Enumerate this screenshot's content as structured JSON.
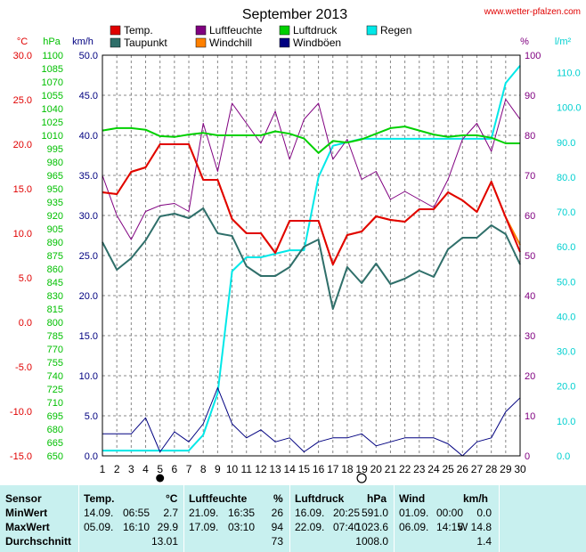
{
  "page": {
    "title": "September 2013",
    "site": "www.wetter-pfalzen.com"
  },
  "colors": {
    "temp": "#e00000",
    "taupunkt": "#2f6f6a",
    "luftfeuchte": "#800080",
    "windchill": "#ff8000",
    "luftdruck": "#00d000",
    "windboeen": "#000080",
    "regen": "#00e8e8",
    "grid": "#888888",
    "stats_bg": "#c8f0ef"
  },
  "legend": [
    {
      "label": "Temp.",
      "color": "#e00000"
    },
    {
      "label": "Taupunkt",
      "color": "#2f6f6a"
    },
    {
      "label": "Luftfeuchte",
      "color": "#800080"
    },
    {
      "label": "Windchill",
      "color": "#ff8000"
    },
    {
      "label": "Luftdruck",
      "color": "#00d000"
    },
    {
      "label": "Windböen",
      "color": "#000080"
    },
    {
      "label": "Regen",
      "color": "#00e8e8"
    }
  ],
  "axes": {
    "unit_celsius": "°C",
    "unit_hpa": "hPa",
    "unit_kmh": "km/h",
    "unit_percent": "%",
    "unit_lm2": "l/m²",
    "celsius_ticks": [
      "30.0",
      "25.0",
      "20.0",
      "15.0",
      "10.0",
      "5.0",
      "0.0",
      "-5.0",
      "-10.0",
      "-15.0"
    ],
    "hpa_ticks": [
      "1100",
      "1085",
      "1070",
      "1055",
      "1040",
      "1025",
      "1010",
      "995",
      "980",
      "965",
      "950",
      "935",
      "920",
      "905",
      "890",
      "875",
      "860",
      "845",
      "830",
      "815",
      "800",
      "785",
      "770",
      "755",
      "740",
      "725",
      "710",
      "695",
      "680",
      "665",
      "650"
    ],
    "kmh_ticks": [
      "50.0",
      "45.0",
      "40.0",
      "35.0",
      "30.0",
      "25.0",
      "20.0",
      "15.0",
      "10.0",
      "5.0",
      "0.0"
    ],
    "percent_ticks": [
      "100",
      "90",
      "80",
      "70",
      "60",
      "50",
      "40",
      "30",
      "20",
      "10",
      "0"
    ],
    "lm2_ticks": [
      "110.0",
      "100.0",
      "90.0",
      "80.0",
      "70.0",
      "60.0",
      "50.0",
      "40.0",
      "30.0",
      "20.0",
      "10.0",
      "0.0"
    ],
    "day_ticks": [
      "1",
      "2",
      "3",
      "4",
      "5",
      "6",
      "7",
      "8",
      "9",
      "10",
      "11",
      "12",
      "13",
      "14",
      "15",
      "16",
      "17",
      "18",
      "19",
      "20",
      "21",
      "22",
      "23",
      "24",
      "25",
      "26",
      "27",
      "28",
      "29",
      "30"
    ]
  },
  "moon_phases": [
    {
      "day": 5,
      "phase": "new-moon"
    },
    {
      "day": 19,
      "phase": "full-moon"
    }
  ],
  "chart_data": {
    "type": "line",
    "title": "September 2013",
    "x": [
      1,
      2,
      3,
      4,
      5,
      6,
      7,
      8,
      9,
      10,
      11,
      12,
      13,
      14,
      15,
      16,
      17,
      18,
      19,
      20,
      21,
      22,
      23,
      24,
      25,
      26,
      27,
      28,
      29,
      30
    ],
    "ylim_celsius": [
      -15,
      30
    ],
    "ylim_kmh": [
      0,
      50
    ],
    "ylim_percent": [
      0,
      100
    ],
    "ylim_lm2": [
      0,
      115
    ],
    "series": [
      {
        "name": "Temp.",
        "axis": "celsius",
        "values": [
          14.6,
          14.4,
          16.9,
          17.4,
          20,
          20,
          20,
          16,
          16,
          11.6,
          10,
          10,
          7.8,
          11.4,
          11.4,
          11.4,
          6.5,
          9.8,
          10.2,
          11.9,
          11.5,
          11.3,
          12.7,
          12.7,
          14.6,
          13.7,
          12.4,
          15.8,
          11.8,
          7.9
        ]
      },
      {
        "name": "Taupunkt",
        "axis": "celsius",
        "values": [
          9,
          5.9,
          7.2,
          9.2,
          11.9,
          12.2,
          11.7,
          12.8,
          10,
          9.7,
          6.3,
          5.2,
          5.2,
          6.2,
          8.5,
          9.3,
          1.5,
          6.2,
          4.4,
          6.6,
          4.3,
          4.9,
          5.8,
          5.1,
          8.2,
          9.5,
          9.5,
          10.9,
          9.9,
          6.5
        ]
      },
      {
        "name": "Luftfeuchte",
        "axis": "percent",
        "values": [
          70,
          60,
          54,
          61,
          62.5,
          63,
          61,
          83,
          71,
          88,
          83,
          78,
          86,
          74,
          84,
          88,
          74,
          79,
          69,
          71,
          64,
          66,
          64,
          62,
          69,
          79,
          83,
          76,
          89,
          84
        ]
      },
      {
        "name": "Luftdruck",
        "axis": "kmh",
        "values": [
          40.6,
          40.9,
          40.9,
          40.7,
          39.9,
          39.8,
          40.1,
          40.3,
          40,
          40,
          40,
          40,
          40.5,
          40.2,
          39.6,
          37.8,
          39.3,
          39.1,
          39.5,
          40.2,
          40.9,
          41.1,
          40.6,
          40.1,
          39.8,
          40,
          40,
          39.7,
          39,
          39
        ]
      },
      {
        "name": "Windböen",
        "axis": "percent",
        "values": [
          5.5,
          5.5,
          5.5,
          9.5,
          1,
          6,
          3.5,
          8,
          17,
          8,
          4.5,
          6.5,
          3.5,
          4.5,
          1,
          3.5,
          4.5,
          4.5,
          5.5,
          2.5,
          3.5,
          4.5,
          4.5,
          4.5,
          3,
          0,
          3.5,
          4.5,
          11,
          14.5
        ]
      },
      {
        "name": "Regen",
        "axis": "lm2",
        "values": [
          1.5,
          1.5,
          1.5,
          1.5,
          1.5,
          1.5,
          1.5,
          6,
          18,
          53,
          57,
          57,
          58,
          59,
          59,
          80,
          89,
          90,
          91,
          91,
          91,
          91,
          91,
          91,
          91,
          91,
          91,
          91,
          107,
          112
        ]
      },
      {
        "name": "Windchill",
        "axis": "celsius",
        "values": [
          14.6,
          14.4,
          16.9,
          17.4,
          20,
          20,
          20,
          16,
          16,
          11.6,
          10,
          10,
          7.8,
          11.4,
          11.4,
          11.4,
          6.5,
          9.8,
          10.2,
          11.9,
          11.5,
          11.3,
          12.7,
          12.7,
          14.6,
          13.7,
          12.4,
          15.8,
          11.8,
          8.7
        ]
      }
    ]
  },
  "stats": {
    "headers": {
      "sensor": "Sensor",
      "temp": "Temp.",
      "temp_unit": "°C",
      "luftfeuchte": "Luftfeuchte",
      "lf_unit": "%",
      "luftdruck": "Luftdruck",
      "ld_unit": "hPa",
      "wind": "Wind",
      "wind_unit": "km/h"
    },
    "rows": [
      {
        "label": "MinWert",
        "temp_date": "14.09.",
        "temp_time": "06:55",
        "temp_val": "2.7",
        "lf_date": "21.09.",
        "lf_time": "16:35",
        "lf_val": "26",
        "ld_date": "16.09.",
        "ld_time": "20:25",
        "ld_val": "591.0",
        "wind_date": "01.09.",
        "wind_time": "00:00",
        "wind_val": "0.0"
      },
      {
        "label": "MaxWert",
        "temp_date": "05.09.",
        "temp_time": "16:10",
        "temp_val": "29.9",
        "lf_date": "17.09.",
        "lf_time": "03:10",
        "lf_val": "94",
        "ld_date": "22.09.",
        "ld_time": "07:40",
        "ld_val": "1023.6",
        "wind_date": "06.09.",
        "wind_time": "14:15",
        "wind_val": "W 14.8"
      },
      {
        "label": "Durchschnitt",
        "temp_date": "",
        "temp_time": "",
        "temp_val": "13.01",
        "lf_date": "",
        "lf_time": "",
        "lf_val": "73",
        "ld_date": "",
        "ld_time": "",
        "ld_val": "1008.0",
        "wind_date": "",
        "wind_time": "",
        "wind_val": "1.4"
      }
    ]
  }
}
